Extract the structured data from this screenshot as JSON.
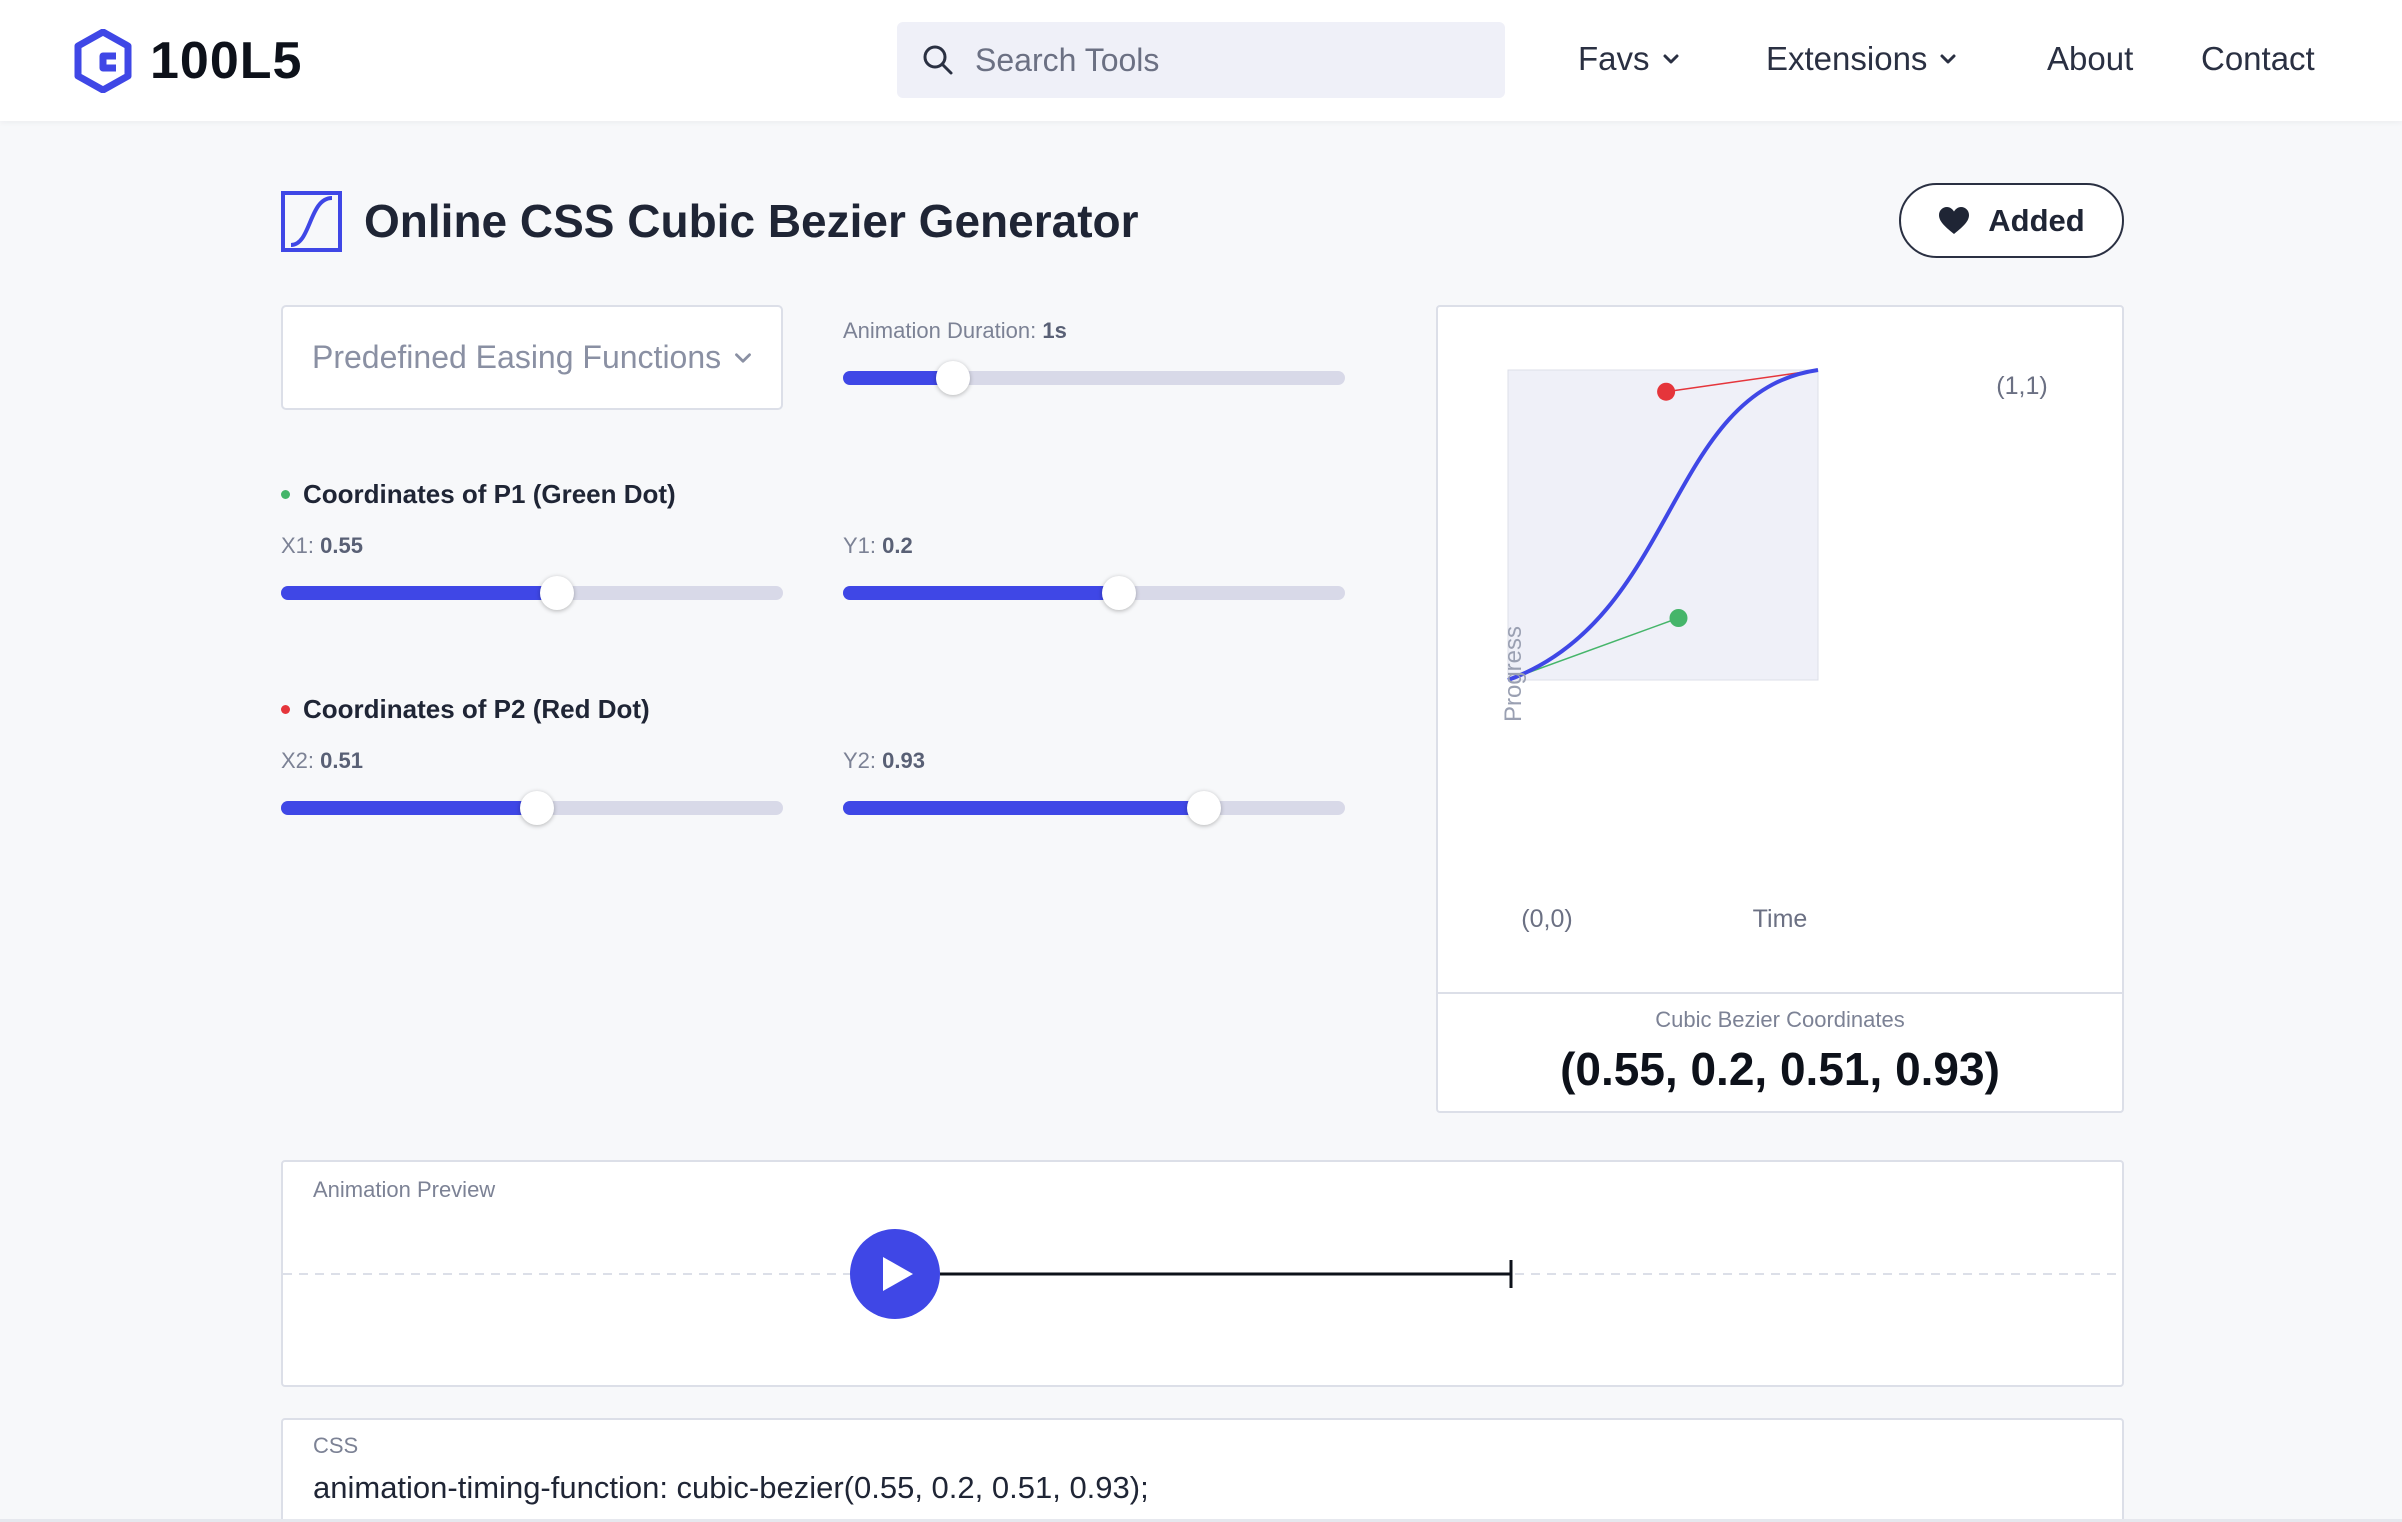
{
  "header": {
    "logo_text": "100L5",
    "search": {
      "placeholder": "Search Tools",
      "value": ""
    },
    "nav": [
      {
        "label": "Favs",
        "has_dropdown": true
      },
      {
        "label": "Extensions",
        "has_dropdown": true
      },
      {
        "label": "About",
        "has_dropdown": false
      },
      {
        "label": "Contact",
        "has_dropdown": false
      }
    ]
  },
  "tool": {
    "title": "Online CSS Cubic Bezier Generator",
    "fav_button": "Added"
  },
  "controls": {
    "easing_select": {
      "placeholder": "Predefined Easing Functions"
    },
    "duration": {
      "label": "Animation Duration:",
      "value": "1s",
      "fraction": 0.22
    },
    "p1": {
      "heading": "Coordinates of P1 (Green Dot)",
      "x": {
        "label": "X1:",
        "value": "0.55",
        "fraction": 0.55
      },
      "y": {
        "label": "Y1:",
        "value": "0.2",
        "fraction": 0.55
      }
    },
    "p2": {
      "heading": "Coordinates of P2 (Red Dot)",
      "x": {
        "label": "X2:",
        "value": "0.51",
        "fraction": 0.51
      },
      "y": {
        "label": "Y2:",
        "value": "0.93",
        "fraction": 0.72
      }
    }
  },
  "chart": {
    "origin_label": "(0,0)",
    "end_label": "(1,1)",
    "xlabel": "Time",
    "ylabel": "Progress",
    "coords_label": "Cubic Bezier Coordinates",
    "coords_value": "(0.55, 0.2, 0.51, 0.93)"
  },
  "chart_data": {
    "type": "line",
    "title": "",
    "xlabel": "Time",
    "ylabel": "Progress",
    "xlim": [
      0,
      1
    ],
    "ylim": [
      0,
      1
    ],
    "control_points": [
      {
        "name": "P1",
        "x": 0.55,
        "y": 0.2,
        "color": "#45b56a"
      },
      {
        "name": "P2",
        "x": 0.51,
        "y": 0.93,
        "color": "#e5353b"
      }
    ],
    "endpoints": [
      [
        0,
        0
      ],
      [
        1,
        1
      ]
    ]
  },
  "preview": {
    "label": "Animation Preview"
  },
  "css_output": {
    "label": "CSS",
    "code": "animation-timing-function: cubic-bezier(0.55, 0.2, 0.51, 0.93);"
  },
  "colors": {
    "accent": "#3f47e6",
    "green_dot": "#45b56a",
    "red_dot": "#e5353b",
    "track": "#d8d9e8"
  },
  "icons": {
    "logo": "hexagon-logo-icon",
    "search": "search-icon",
    "dropdown": "chevron-down-icon",
    "title": "bezier-curve-icon",
    "favorite": "heart-icon",
    "play": "play-icon"
  }
}
